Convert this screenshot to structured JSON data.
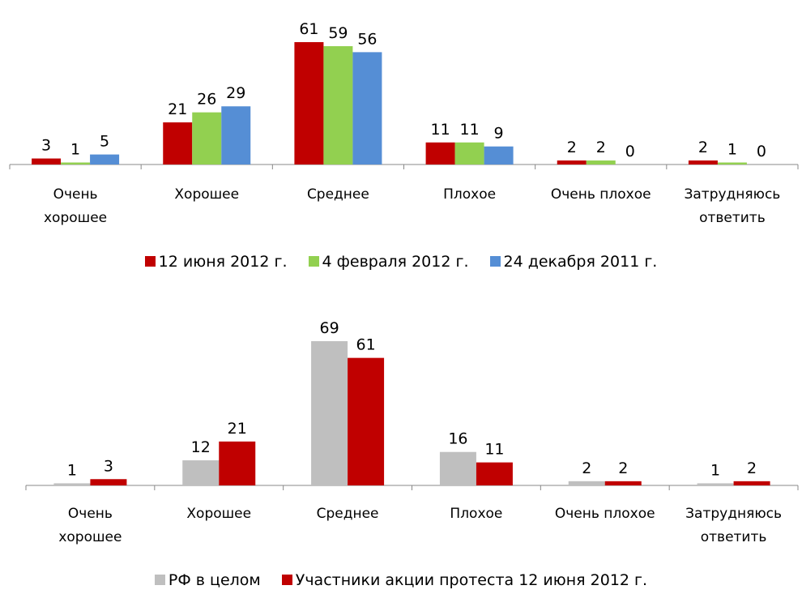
{
  "chart_data": [
    {
      "type": "bar",
      "categories": [
        "Очень\nхорошее",
        "Хорошее",
        "Среднее",
        "Плохое",
        "Очень плохое",
        "Затрудняюсь\nответить"
      ],
      "series": [
        {
          "name": "12 июня 2012 г.",
          "color": "#c00000",
          "values": [
            3,
            21,
            61,
            11,
            2,
            2
          ]
        },
        {
          "name": "4 февраля 2012 г.",
          "color": "#92d050",
          "values": [
            1,
            26,
            59,
            11,
            2,
            1
          ]
        },
        {
          "name": "24 декабря 2011 г.",
          "color": "#558ed5",
          "values": [
            5,
            29,
            56,
            9,
            0,
            0
          ]
        }
      ]
    },
    {
      "type": "bar",
      "categories": [
        "Очень\nхорошее",
        "Хорошее",
        "Среднее",
        "Плохое",
        "Очень плохое",
        "Затрудняюсь\nответить"
      ],
      "series": [
        {
          "name": "РФ в целом",
          "color": "#bfbfbf",
          "values": [
            1,
            12,
            69,
            16,
            2,
            1
          ]
        },
        {
          "name": "Участники акции протеста 12 июня 2012 г.",
          "color": "#c00000",
          "values": [
            3,
            21,
            61,
            11,
            2,
            2
          ]
        }
      ]
    }
  ]
}
